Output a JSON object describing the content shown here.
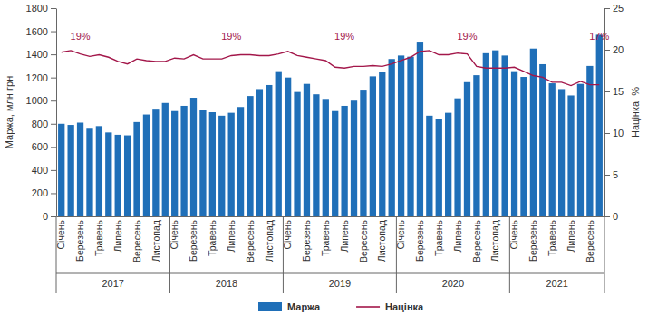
{
  "chart_data": {
    "type": "bar",
    "y_label": "Маржа, млн грн",
    "y2_label": "Націнка, %",
    "categories": [
      "Січень",
      null,
      "Березень",
      null,
      "Травень",
      null,
      "Липень",
      null,
      "Вересень",
      null,
      "Листопад",
      null,
      "Січень",
      null,
      "Березень",
      null,
      "Травень",
      null,
      "Липень",
      null,
      "Вересень",
      null,
      "Листопад",
      null,
      "Січень",
      null,
      "Березень",
      null,
      "Травень",
      null,
      "Липень",
      null,
      "Вересень",
      null,
      "Листопад",
      null,
      "Січень",
      null,
      "Березень",
      null,
      "Травень",
      null,
      "Липень",
      null,
      "Вересень",
      null,
      "Листопад",
      null,
      "Січень",
      null,
      "Березень",
      null,
      "Травень",
      null,
      "Липень",
      null,
      "Вересень",
      null
    ],
    "groups": [
      {
        "label": "2017",
        "count": 12
      },
      {
        "label": "2018",
        "count": 12
      },
      {
        "label": "2019",
        "count": 12
      },
      {
        "label": "2020",
        "count": 12
      },
      {
        "label": "2021",
        "count": 10
      }
    ],
    "series": [
      {
        "name": "Маржа",
        "type": "bar",
        "color": "#1f6fb8",
        "values": [
          800,
          790,
          810,
          765,
          780,
          725,
          705,
          700,
          815,
          880,
          930,
          980,
          910,
          955,
          1025,
          920,
          900,
          870,
          895,
          945,
          1040,
          1100,
          1135,
          1255,
          1200,
          1075,
          1145,
          1055,
          1015,
          910,
          955,
          1000,
          1095,
          1210,
          1250,
          1360,
          1390,
          1380,
          1510,
          870,
          840,
          895,
          1020,
          1160,
          1220,
          1410,
          1435,
          1390,
          1255,
          1205,
          1450,
          1315,
          1150,
          1100,
          1045,
          1145,
          1300,
          1570
        ]
      },
      {
        "name": "Націнка",
        "type": "line",
        "color": "#a3174a",
        "axis": "y2",
        "values": [
          19.7,
          19.9,
          19.5,
          19.2,
          19.4,
          19.1,
          18.6,
          18.3,
          18.9,
          18.7,
          18.6,
          18.6,
          19.0,
          18.9,
          19.4,
          18.9,
          18.9,
          18.9,
          19.3,
          19.4,
          19.4,
          19.3,
          19.3,
          19.5,
          19.8,
          19.3,
          19.1,
          18.9,
          18.7,
          17.9,
          17.8,
          18.0,
          18.0,
          18.1,
          18.0,
          18.3,
          18.7,
          19.1,
          19.8,
          19.9,
          19.4,
          19.4,
          19.6,
          19.5,
          18.0,
          17.8,
          17.8,
          17.8,
          17.9,
          17.4,
          16.9,
          16.7,
          16.1,
          16.1,
          15.7,
          16.2,
          15.8,
          15.8
        ]
      }
    ],
    "annotations": [
      {
        "text": "19%",
        "x": 2,
        "y": 21.2
      },
      {
        "text": "19%",
        "x": 18,
        "y": 21.2
      },
      {
        "text": "19%",
        "x": 30,
        "y": 21.2
      },
      {
        "text": "19%",
        "x": 43,
        "y": 21.2
      },
      {
        "text": "17%",
        "x": 57,
        "y": 21.2
      }
    ],
    "ylim": [
      0,
      1800
    ],
    "yticks": [
      0,
      200,
      400,
      600,
      800,
      1000,
      1200,
      1400,
      1600,
      1800
    ],
    "y2lim": [
      0,
      25
    ],
    "y2ticks": [
      0,
      5,
      10,
      15,
      20,
      25
    ],
    "grid": false,
    "legend": "bottom"
  }
}
